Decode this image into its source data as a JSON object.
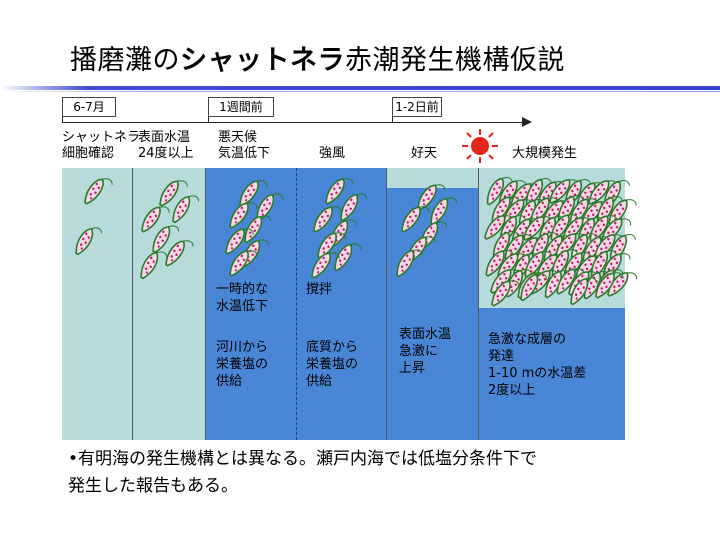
{
  "title": {
    "part1": "播磨灘の",
    "part2": "シャットネラ",
    "part3": "赤潮発生機構仮説"
  },
  "timeline": {
    "t1": "6-7月",
    "t2": "1週間前",
    "t3": "1-2日前"
  },
  "stages": {
    "s1": [
      "シャットネラ",
      "細胞確認"
    ],
    "s2": [
      "表面水温",
      "24度以上"
    ],
    "s3": [
      "悪天候",
      "気温低下"
    ],
    "s4": "強風",
    "s5": "好天",
    "s6": "大規模発生"
  },
  "panels": {
    "p3a": [
      "一時的な",
      "水温低下"
    ],
    "p3b": [
      "河川から",
      "栄養塩の",
      "供給"
    ],
    "p4a": "撹拌",
    "p4b": [
      "底質から",
      "栄養塩の",
      "供給"
    ],
    "p5": [
      "表面水温",
      "急激に",
      "上昇"
    ],
    "p6": [
      "急激な成層の",
      "発達",
      "1-10 mの水温差",
      "2度以上"
    ]
  },
  "note": {
    "line1": "•有明海の発生機構とは異なる。瀬戸内海では低塩分条件下で",
    "line2": "発生した報告もある。"
  },
  "colors": {
    "cold_water": "#b7dbdb",
    "warm_water": "#4a86d6",
    "sun": "#e8251b",
    "title_rule": "#3344cc",
    "cell_outline": "#2a7a2a",
    "cell_spots": "#c0186a"
  },
  "icons": {
    "cell": "chattonella-cell-icon",
    "sun": "sun-icon"
  }
}
